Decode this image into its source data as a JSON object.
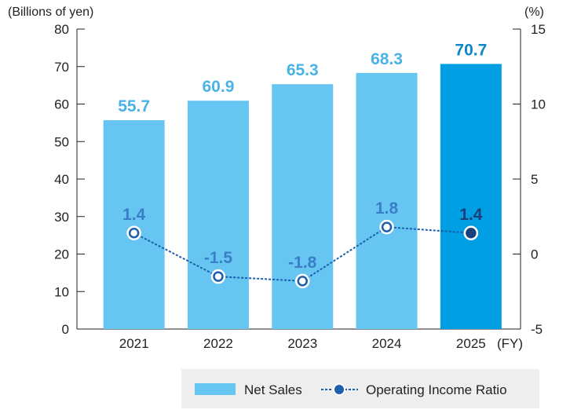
{
  "chart_data": {
    "type": "bar",
    "categories": [
      "2021",
      "2022",
      "2023",
      "2024",
      "2025"
    ],
    "x_unit": "(FY)",
    "series": [
      {
        "name": "Net Sales",
        "type": "bar",
        "axis": "left",
        "values": [
          55.7,
          60.9,
          65.3,
          68.3,
          70.7
        ],
        "labels": [
          "55.7",
          "60.9",
          "65.3",
          "68.3",
          "70.7"
        ],
        "color": "#66c6f1",
        "highlight_color": "#009fe3",
        "label_color": "#4ab3e6",
        "highlight_label_color": "#0a86c9"
      },
      {
        "name": "Operating Income Ratio",
        "type": "line",
        "axis": "right",
        "values": [
          1.4,
          -1.5,
          -1.8,
          1.8,
          1.4
        ],
        "labels": [
          "1.4",
          "-1.5",
          "-1.8",
          "1.8",
          "1.4"
        ],
        "color": "#1b5fae",
        "label_color": "#3a7ec8",
        "highlight_label_color": "#1a3f7a"
      }
    ],
    "highlight_index": 4,
    "y_left": {
      "unit": "(Billions of yen)",
      "ylim": [
        0,
        80
      ],
      "ticks": [
        "0",
        "10",
        "20",
        "30",
        "40",
        "50",
        "60",
        "70",
        "80"
      ]
    },
    "y_right": {
      "unit": "(%)",
      "ylim": [
        -5,
        15
      ],
      "ticks": [
        "-5",
        "0",
        "5",
        "10",
        "15"
      ]
    },
    "grid": false,
    "legend": {
      "placement": "bottom-right",
      "items": [
        "Net Sales",
        "Operating Income Ratio"
      ],
      "background": "#eeeeee"
    }
  }
}
